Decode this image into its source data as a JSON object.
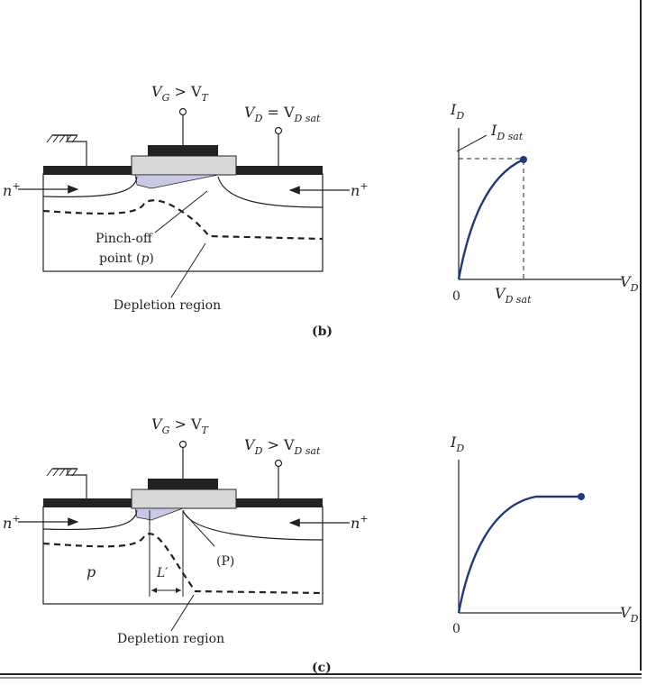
{
  "panel_b": {
    "gate_label": "V",
    "gate_sub": "G",
    "gate_rest": " > V",
    "gate_sub2": "T",
    "drain_label": "V",
    "drain_sub": "D",
    "drain_rest": " = V",
    "drain_sub2": "D sat",
    "source_region": "n",
    "source_sup": "+",
    "drain_region": "n",
    "drain_sup": "+",
    "pinch_line1": "Pinch-off",
    "pinch_line2_a": "point (",
    "pinch_line2_p": "p",
    "pinch_line2_b": ")",
    "depletion_label": "Depletion region",
    "caption": "(b)"
  },
  "graph_b": {
    "y_label": "I",
    "y_sub": "D",
    "sat_label": "I",
    "sat_sub": "D sat",
    "origin": "0",
    "x_tick": "V",
    "x_tick_sub": "D sat",
    "x_label": "V",
    "x_sub": "D"
  },
  "panel_c": {
    "gate_label": "V",
    "gate_sub": "G",
    "gate_rest": " > V",
    "gate_sub2": "T",
    "drain_label": "V",
    "drain_sub": "D",
    "drain_rest": " > V",
    "drain_sub2": "D sat",
    "source_region": "n",
    "source_sup": "+",
    "drain_region": "n",
    "drain_sup": "+",
    "substrate": "p",
    "pinch_label": "(P)",
    "length_label": "L′",
    "depletion_label": "Depletion region",
    "caption": "(c)"
  },
  "graph_c": {
    "y_label": "I",
    "y_sub": "D",
    "origin": "0",
    "x_label": "V",
    "x_sub": "D"
  },
  "colors": {
    "curve": "#1f3a7a",
    "channel": "#c9c9e6",
    "oxide": "#d8d8d8",
    "metal": "#222222"
  }
}
